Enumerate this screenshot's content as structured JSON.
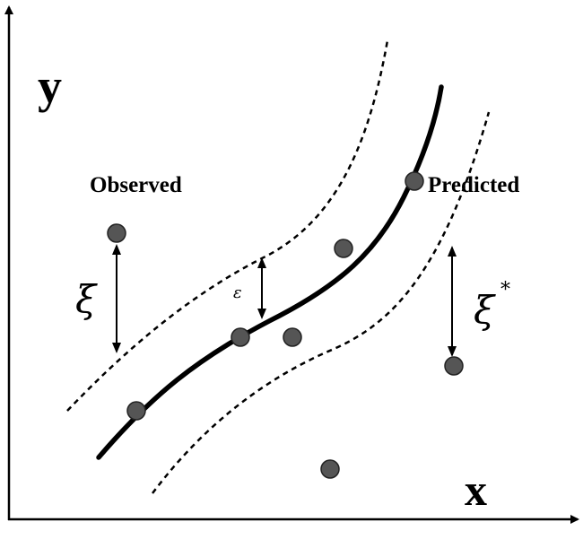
{
  "labels": {
    "y_axis": "y",
    "x_axis": "x",
    "observed": "Observed",
    "predicted": "Predicted",
    "xi": "ξ",
    "epsilon": "ε",
    "xi_star": "ξ",
    "xi_star_sup": "*"
  },
  "colors": {
    "points": "#555555",
    "lines": "#000000"
  }
}
